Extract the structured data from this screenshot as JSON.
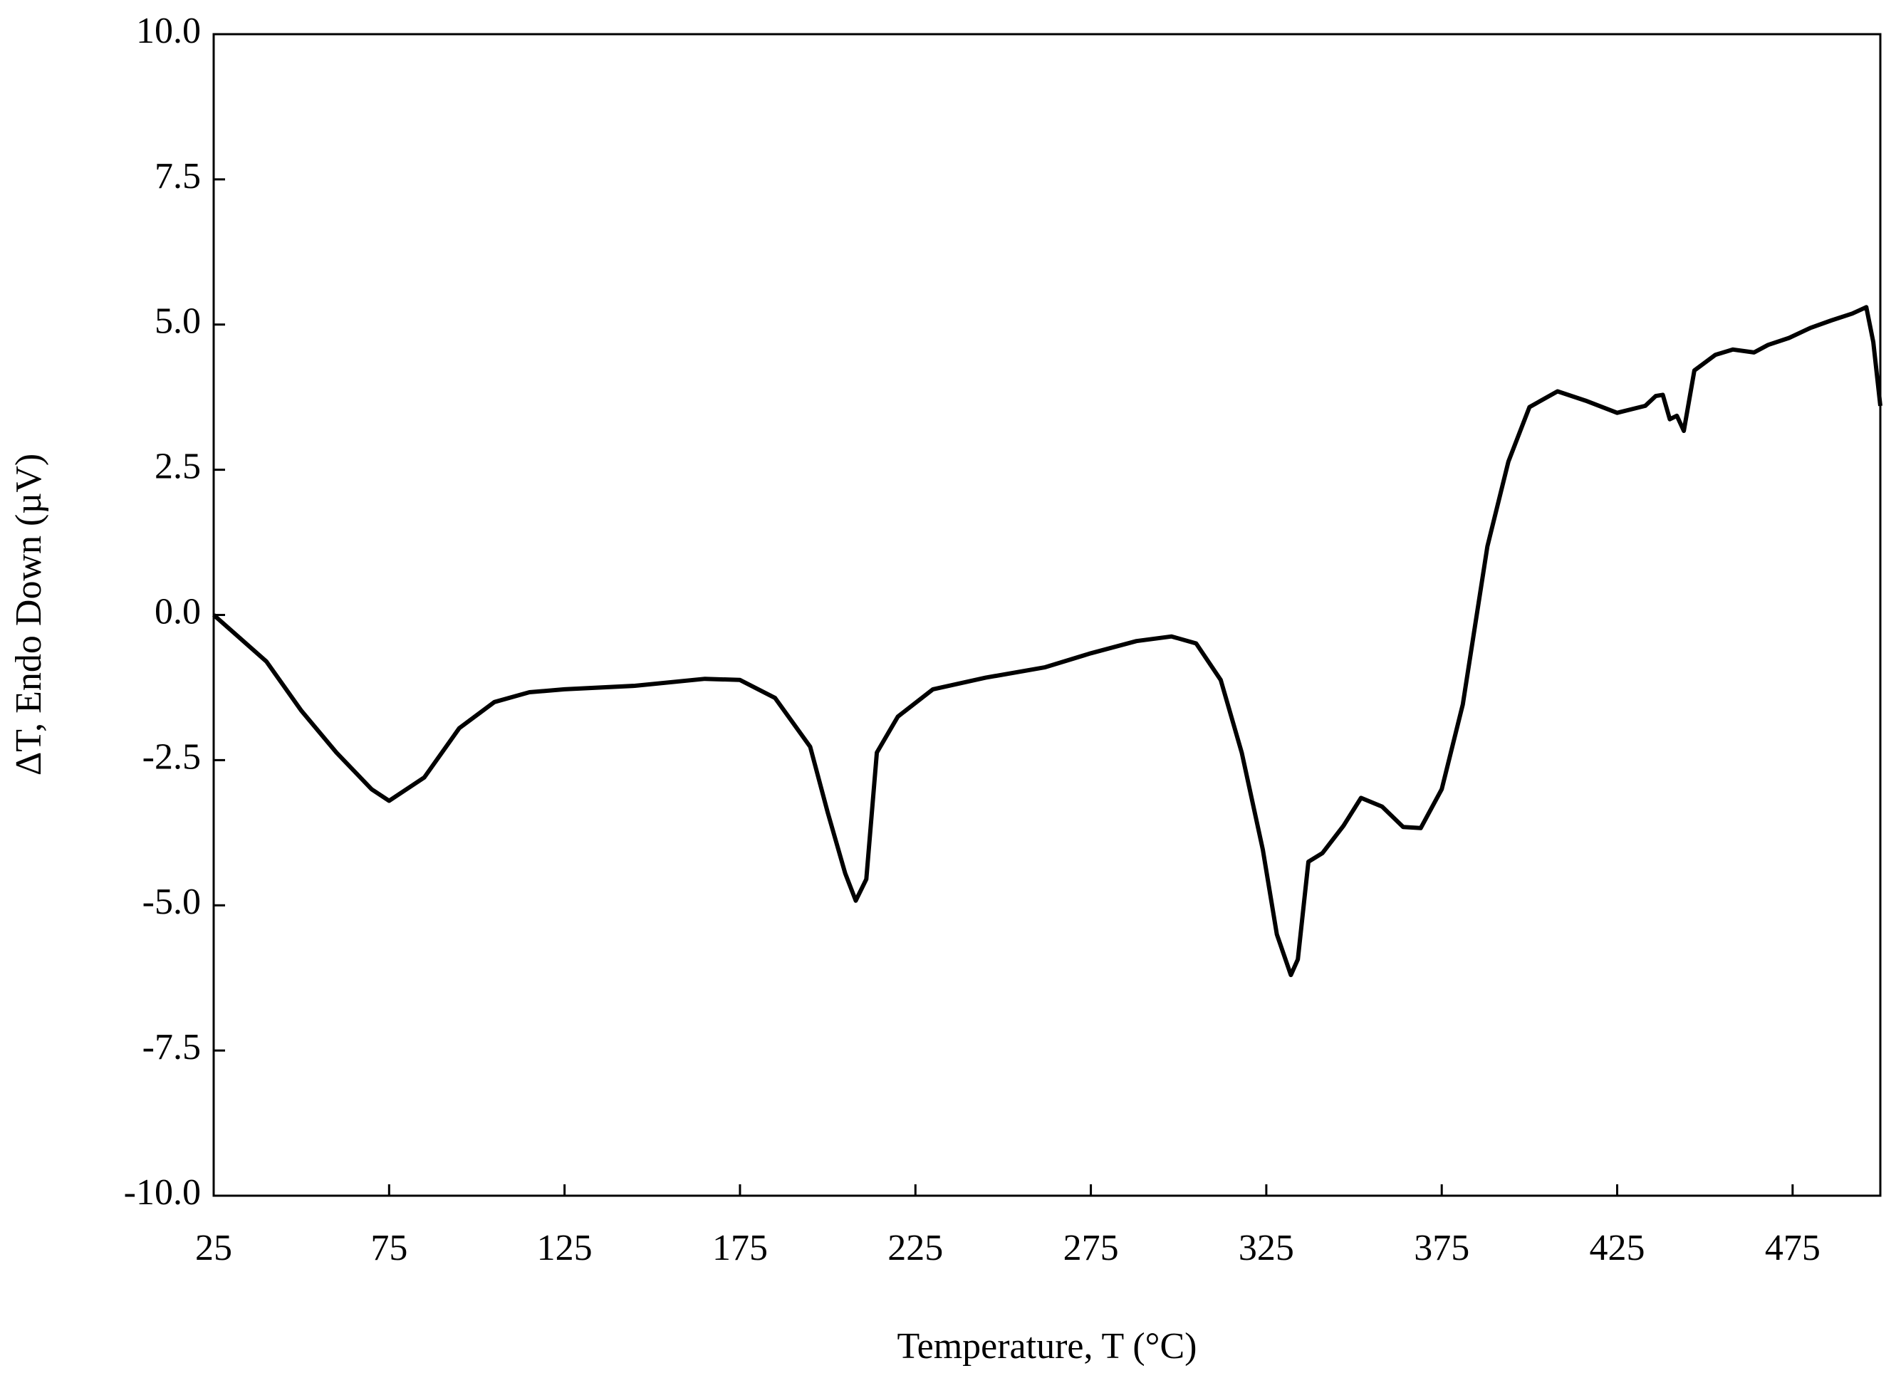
{
  "chart_data": {
    "type": "line",
    "x_label": "Temperature, T (°C)",
    "y_label": "ΔT, Endo Down (µV)",
    "x": [
      25,
      40,
      50,
      60,
      70,
      75,
      85,
      95,
      105,
      115,
      125,
      145,
      165,
      175,
      185,
      195,
      200,
      205,
      208,
      211,
      214,
      220,
      230,
      245,
      262,
      275,
      288,
      298,
      305,
      312,
      318,
      324,
      328,
      332,
      334,
      337,
      341,
      347,
      352,
      358,
      364,
      369,
      375,
      381,
      388,
      394,
      400,
      408,
      416,
      425,
      433,
      436,
      438,
      440,
      442,
      444,
      447,
      453,
      458,
      464,
      468,
      474,
      480,
      486,
      492,
      496,
      498,
      500
    ],
    "series": [
      {
        "name": "ΔT",
        "color": "#000000",
        "values": [
          0.0,
          -0.8,
          -1.65,
          -2.37,
          -3.0,
          -3.2,
          -2.8,
          -1.95,
          -1.5,
          -1.33,
          -1.28,
          -1.22,
          -1.1,
          -1.12,
          -1.43,
          -2.27,
          -3.4,
          -4.45,
          -4.92,
          -4.55,
          -2.37,
          -1.75,
          -1.28,
          -1.08,
          -0.9,
          -0.66,
          -0.45,
          -0.37,
          -0.49,
          -1.12,
          -2.37,
          -4.04,
          -5.5,
          -6.2,
          -5.93,
          -4.25,
          -4.1,
          -3.63,
          -3.15,
          -3.3,
          -3.65,
          -3.67,
          -3.0,
          -1.54,
          1.18,
          2.64,
          3.58,
          3.85,
          3.69,
          3.48,
          3.6,
          3.77,
          3.79,
          3.37,
          3.43,
          3.17,
          4.21,
          4.48,
          4.57,
          4.52,
          4.65,
          4.77,
          4.94,
          5.07,
          5.19,
          5.3,
          4.7,
          3.6
        ]
      }
    ],
    "xlim": [
      25,
      500
    ],
    "xticks": [
      25,
      75,
      125,
      175,
      225,
      275,
      325,
      375,
      425,
      475
    ],
    "ylim": [
      -10,
      10
    ],
    "yticks": [
      {
        "value": -10,
        "label": "-10.0"
      },
      -7.5,
      {
        "value": -5,
        "label": "-5.0"
      },
      -2.5,
      {
        "value": 0,
        "label": "0.0"
      },
      2.5,
      {
        "value": 5,
        "label": "5.0"
      },
      7.5,
      {
        "value": 10,
        "label": "10.0"
      }
    ],
    "grid": false
  }
}
